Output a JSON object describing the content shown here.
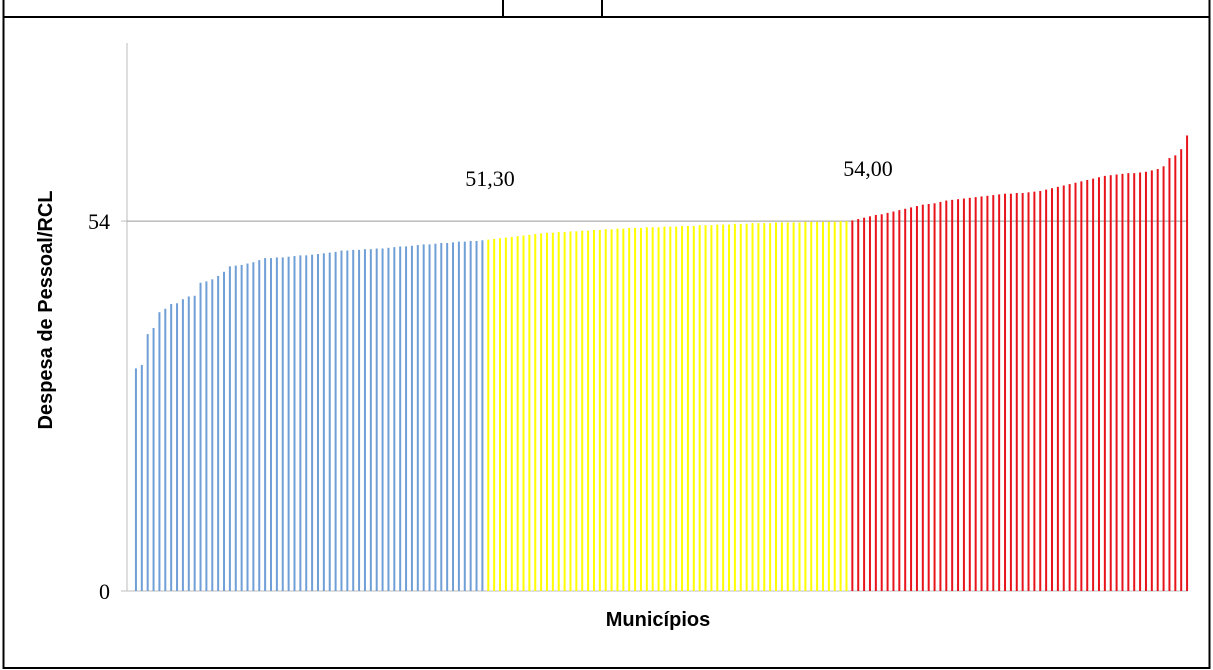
{
  "chart_data": {
    "type": "bar",
    "y_label": "Despesa de  Pessoal/RCL",
    "x_label": "Municípios",
    "annotations": [
      "51,30",
      "54,00"
    ],
    "ylim": [
      0,
      80
    ],
    "yticks": [
      0,
      54
    ],
    "grid_values": [
      54
    ],
    "series": [
      {
        "color": "#6f9fd6",
        "values": [
          32.5,
          33.0,
          37.5,
          38.4,
          40.7,
          41.2,
          41.9,
          42.0,
          42.6,
          43.0,
          43.1,
          45.0,
          45.2,
          45.5,
          46.0,
          46.6,
          47.4,
          47.5,
          47.6,
          47.8,
          48.0,
          48.3,
          48.6,
          48.6,
          48.7,
          48.7,
          48.8,
          48.9,
          49.0,
          49.0,
          49.1,
          49.2,
          49.3,
          49.4,
          49.5,
          49.7,
          49.7,
          49.8,
          49.8,
          49.9,
          49.9,
          50.0,
          50.0,
          50.1,
          50.2,
          50.3,
          50.3,
          50.4,
          50.5,
          50.6,
          50.6,
          50.7,
          50.8,
          50.8,
          50.9,
          51.0,
          51.0,
          51.1,
          51.1,
          51.2
        ]
      },
      {
        "color": "#ffff00",
        "values": [
          51.3,
          51.4,
          51.5,
          51.6,
          51.7,
          51.8,
          51.9,
          52.0,
          52.1,
          52.2,
          52.3,
          52.3,
          52.4,
          52.4,
          52.5,
          52.5,
          52.6,
          52.6,
          52.7,
          52.7,
          52.8,
          52.8,
          52.9,
          52.9,
          53.0,
          53.0,
          53.0,
          53.1,
          53.1,
          53.1,
          53.2,
          53.2,
          53.2,
          53.3,
          53.3,
          53.3,
          53.4,
          53.4,
          53.4,
          53.5,
          53.5,
          53.5,
          53.6,
          53.6,
          53.6,
          53.7,
          53.7,
          53.7,
          53.7,
          53.8,
          53.8,
          53.8,
          53.8,
          53.8,
          53.9,
          53.9,
          53.9,
          53.9,
          53.9,
          53.9,
          54.0,
          54.0
        ]
      },
      {
        "color": "#e8141c",
        "values": [
          54.1,
          54.3,
          54.5,
          54.7,
          54.9,
          55.0,
          55.2,
          55.4,
          55.6,
          55.8,
          56.0,
          56.2,
          56.4,
          56.5,
          56.6,
          56.8,
          57.0,
          57.1,
          57.2,
          57.3,
          57.4,
          57.5,
          57.6,
          57.7,
          57.8,
          57.9,
          58.0,
          58.0,
          58.1,
          58.1,
          58.2,
          58.3,
          58.4,
          58.6,
          58.8,
          59.0,
          59.2,
          59.4,
          59.6,
          59.8,
          60.0,
          60.2,
          60.4,
          60.6,
          60.7,
          60.8,
          60.9,
          61.0,
          61.0,
          61.1,
          61.2,
          61.4,
          61.6,
          62.0,
          63.2,
          63.6,
          64.5,
          66.5
        ]
      }
    ]
  }
}
